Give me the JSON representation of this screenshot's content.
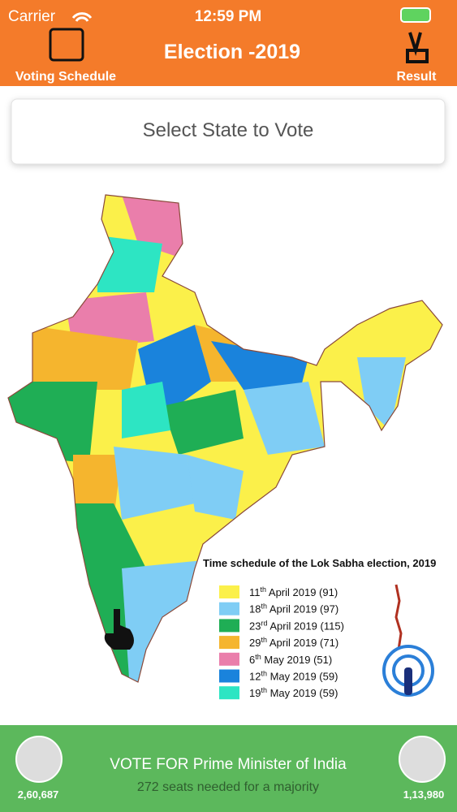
{
  "status_bar": {
    "carrier": "Carrier",
    "time": "12:59 PM"
  },
  "header": {
    "left_button": "Voting Schedule",
    "title": "Election -2019",
    "right_button": "Result"
  },
  "search": {
    "placeholder": "Select State to Vote"
  },
  "map": {
    "title": "Time schedule of the Lok Sabha election, 2019",
    "legend": [
      {
        "day": "11",
        "suffix": "th",
        "text": " April 2019 (91)",
        "color": "#fbf04a"
      },
      {
        "day": "18",
        "suffix": "th",
        "text": " April 2019 (97)",
        "color": "#7fcdf5"
      },
      {
        "day": "23",
        "suffix": "rd",
        "text": " April 2019 (115)",
        "color": "#1fae55"
      },
      {
        "day": "29",
        "suffix": "th",
        "text": " April 2019 (71)",
        "color": "#f5b52e"
      },
      {
        "day": "6",
        "suffix": "th",
        "text": " May 2019 (51)",
        "color": "#ea7eab"
      },
      {
        "day": "12",
        "suffix": "th",
        "text": " May 2019 (59)",
        "color": "#1a83dc"
      },
      {
        "day": "19",
        "suffix": "th",
        "text": " May 2019 (59)",
        "color": "#2de5c3"
      }
    ]
  },
  "footer": {
    "title": "VOTE FOR Prime Minister of India",
    "subtitle": "272 seats needed for a majority",
    "left_count": "2,60,687",
    "right_count": "1,13,980"
  }
}
